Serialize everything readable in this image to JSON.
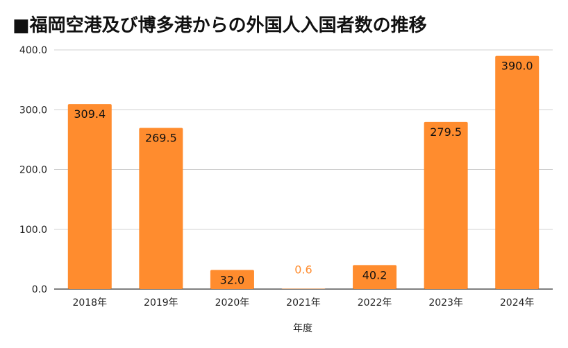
{
  "chart_data": {
    "type": "bar",
    "title": "■福岡空港及び博多港からの外国人入国者数の推移",
    "xlabel": "年度",
    "ylabel": "",
    "categories": [
      "2018年",
      "2019年",
      "2020年",
      "2021年",
      "2022年",
      "2023年",
      "2024年"
    ],
    "values": [
      309.4,
      269.5,
      32.0,
      0.6,
      40.2,
      279.5,
      390.0
    ],
    "value_labels": [
      "309.4",
      "269.5",
      "32.0",
      "0.6",
      "40.2",
      "279.5",
      "390.0"
    ],
    "ylim": [
      0,
      400
    ],
    "yticks": [
      0,
      100,
      200,
      300,
      400
    ],
    "ytick_labels": [
      "0.0",
      "100.0",
      "200.0",
      "300.0",
      "400.0"
    ],
    "grid": true,
    "legend": "none",
    "bar_color": "#FF8C2E",
    "label_color_inside": "#111111",
    "label_color_outside": "#FF8C2E"
  }
}
